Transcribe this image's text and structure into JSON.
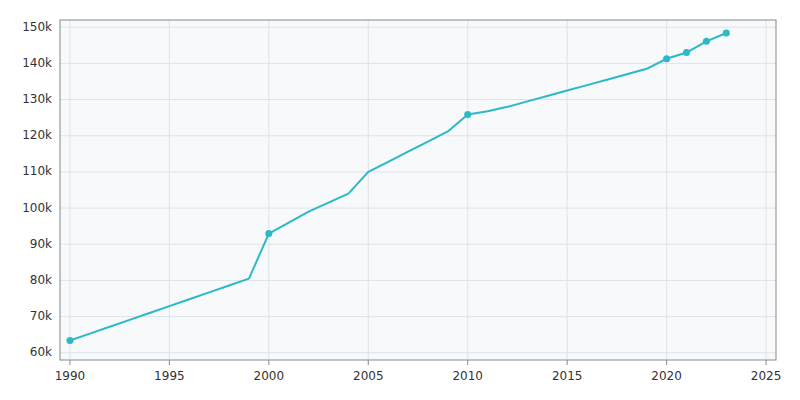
{
  "chart_data": {
    "type": "line",
    "x": [
      1990,
      1991,
      1992,
      1993,
      1994,
      1995,
      1996,
      1997,
      1998,
      1999,
      2000,
      2001,
      2002,
      2003,
      2004,
      2005,
      2006,
      2007,
      2008,
      2009,
      2010,
      2011,
      2012,
      2013,
      2014,
      2015,
      2016,
      2017,
      2018,
      2019,
      2020,
      2021,
      2022,
      2023
    ],
    "series": [
      {
        "color": "#29b9c7",
        "values": [
          63393,
          65300,
          67200,
          69100,
          71000,
          72900,
          74800,
          76700,
          78600,
          80500,
          92962,
          96000,
          99000,
          101500,
          104000,
          110000,
          112800,
          115600,
          118400,
          121200,
          125872,
          126800,
          128000,
          129500,
          131000,
          132500,
          134000,
          135500,
          137000,
          138500,
          141290,
          143000,
          146100,
          148400
        ]
      },
      {
        "type": "scatter",
        "color": "#29b9c7",
        "x": [
          1990,
          2000,
          2010,
          2020,
          2021,
          2022,
          2023
        ],
        "values": [
          63393,
          92962,
          125872,
          141290,
          143000,
          146100,
          148400
        ]
      }
    ],
    "xlim": [
      1989.5,
      2025.5
    ],
    "xticks": [
      1990,
      1995,
      2000,
      2005,
      2010,
      2015,
      2020,
      2025
    ],
    "ylim": [
      58000,
      152000
    ],
    "yticks": [
      {
        "value": 60000,
        "label": "60k"
      },
      {
        "value": 70000,
        "label": "70k"
      },
      {
        "value": 80000,
        "label": "80k"
      },
      {
        "value": 90000,
        "label": "90k"
      },
      {
        "value": 100000,
        "label": "100k"
      },
      {
        "value": 110000,
        "label": "110k"
      },
      {
        "value": 120000,
        "label": "120k"
      },
      {
        "value": 130000,
        "label": "130k"
      },
      {
        "value": 140000,
        "label": "140k"
      },
      {
        "value": 150000,
        "label": "150k"
      }
    ],
    "grid": true
  }
}
